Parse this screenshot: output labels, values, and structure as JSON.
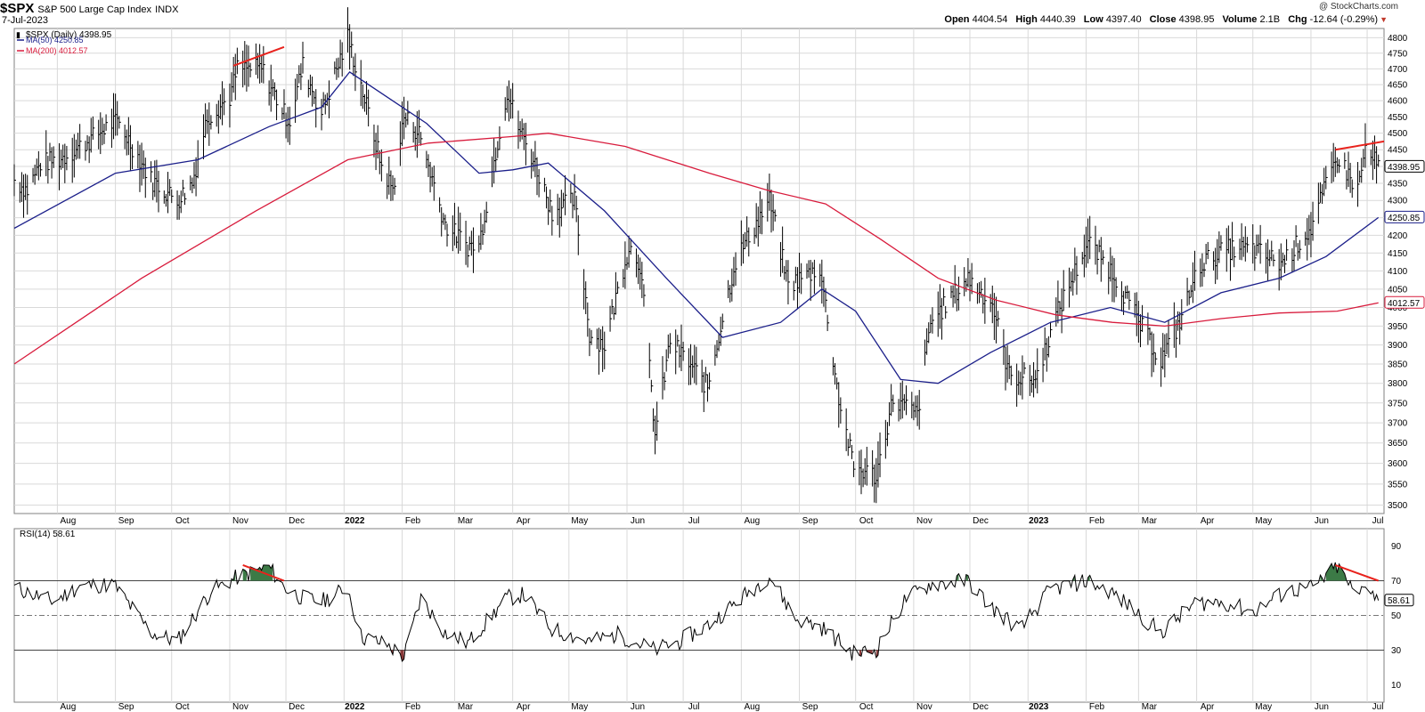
{
  "header": {
    "symbol": "$SPX",
    "name": "S&P 500 Large Cap Index",
    "exchange": "INDX",
    "date": "7-Jul-2023",
    "open_label": "Open",
    "open": "4404.54",
    "high_label": "High",
    "high": "4440.39",
    "low_label": "Low",
    "low": "4397.40",
    "close_label": "Close",
    "close": "4398.95",
    "volume_label": "Volume",
    "volume": "2.1B",
    "chg_label": "Chg",
    "chg": "-12.64 (-0.29%)",
    "watermark": "@ StockCharts.com"
  },
  "legend": {
    "price": "$SPX (Daily) 4398.95",
    "ma50": "MA(50) 4250.85",
    "ma200": "MA(200) 4012.57",
    "rsi": "RSI(14) 58.61"
  },
  "colors": {
    "price": "#000000",
    "ma50": "#1b1f8a",
    "ma200": "#d81b3c",
    "annotation": "#e8221c",
    "grid": "#d9d9d9",
    "overbought_fill": "#3c7a46",
    "oversold_fill": "#8b3a3a"
  },
  "chart_data": [
    {
      "type": "line",
      "title": "$SPX (Daily)",
      "scale": "log",
      "ylim": [
        3480,
        4830
      ],
      "y_ticks": [
        3500,
        3550,
        3600,
        3650,
        3700,
        3750,
        3800,
        3850,
        3900,
        3950,
        4000,
        4050,
        4100,
        4150,
        4200,
        4250,
        4300,
        4350,
        4400,
        4450,
        4500,
        4550,
        4600,
        4650,
        4700,
        4750,
        4800
      ],
      "x_range": [
        "2021-07-09",
        "2023-07-10"
      ],
      "x_tick_labels": [
        {
          "date": "2021-08-01",
          "label": "Aug",
          "bold": false
        },
        {
          "date": "2021-09-01",
          "label": "Sep",
          "bold": false
        },
        {
          "date": "2021-10-01",
          "label": "Oct",
          "bold": false
        },
        {
          "date": "2021-11-01",
          "label": "Nov",
          "bold": false
        },
        {
          "date": "2021-12-01",
          "label": "Dec",
          "bold": false
        },
        {
          "date": "2022-01-01",
          "label": "2022",
          "bold": true
        },
        {
          "date": "2022-02-01",
          "label": "Feb",
          "bold": false
        },
        {
          "date": "2022-03-01",
          "label": "Mar",
          "bold": false
        },
        {
          "date": "2022-04-01",
          "label": "Apr",
          "bold": false
        },
        {
          "date": "2022-05-01",
          "label": "May",
          "bold": false
        },
        {
          "date": "2022-06-01",
          "label": "Jun",
          "bold": false
        },
        {
          "date": "2022-07-01",
          "label": "Jul",
          "bold": false
        },
        {
          "date": "2022-08-01",
          "label": "Aug",
          "bold": false
        },
        {
          "date": "2022-09-01",
          "label": "Sep",
          "bold": false
        },
        {
          "date": "2022-10-01",
          "label": "Oct",
          "bold": false
        },
        {
          "date": "2022-11-01",
          "label": "Nov",
          "bold": false
        },
        {
          "date": "2022-12-01",
          "label": "Dec",
          "bold": false
        },
        {
          "date": "2023-01-01",
          "label": "2023",
          "bold": true
        },
        {
          "date": "2023-02-01",
          "label": "Feb",
          "bold": false
        },
        {
          "date": "2023-03-01",
          "label": "Mar",
          "bold": false
        },
        {
          "date": "2023-04-01",
          "label": "Apr",
          "bold": false
        },
        {
          "date": "2023-05-01",
          "label": "May",
          "bold": false
        },
        {
          "date": "2023-06-01",
          "label": "Jun",
          "bold": false
        },
        {
          "date": "2023-07-01",
          "label": "Jul",
          "bold": false
        }
      ],
      "grid": true,
      "series": [
        {
          "name": "$SPX",
          "style": "ohlc-bars",
          "x": [
            "2021-07-09",
            "2021-07-16",
            "2021-07-23",
            "2021-08-02",
            "2021-08-16",
            "2021-08-30",
            "2021-09-03",
            "2021-09-20",
            "2021-10-04",
            "2021-10-12",
            "2021-10-20",
            "2021-11-01",
            "2021-11-05",
            "2021-11-18",
            "2021-11-30",
            "2021-12-03",
            "2021-12-10",
            "2021-12-20",
            "2022-01-03",
            "2022-01-10",
            "2022-01-21",
            "2022-01-27",
            "2022-02-02",
            "2022-02-10",
            "2022-02-24",
            "2022-03-08",
            "2022-03-14",
            "2022-03-29",
            "2022-04-04",
            "2022-04-12",
            "2022-04-22",
            "2022-05-04",
            "2022-05-12",
            "2022-05-20",
            "2022-06-02",
            "2022-06-08",
            "2022-06-16",
            "2022-06-24",
            "2022-07-06",
            "2022-07-14",
            "2022-07-29",
            "2022-08-16",
            "2022-08-26",
            "2022-09-12",
            "2022-09-22",
            "2022-09-30",
            "2022-10-12",
            "2022-10-21",
            "2022-11-03",
            "2022-11-10",
            "2022-11-30",
            "2022-12-13",
            "2022-12-22",
            "2023-01-05",
            "2023-01-17",
            "2023-02-02",
            "2023-02-16",
            "2023-03-01",
            "2023-03-13",
            "2023-03-22",
            "2023-04-03",
            "2023-04-17",
            "2023-05-01",
            "2023-05-16",
            "2023-06-01",
            "2023-06-15",
            "2023-06-26",
            "2023-06-30",
            "2023-07-07"
          ],
          "values": [
            4360,
            4330,
            4410,
            4420,
            4470,
            4530,
            4530,
            4360,
            4300,
            4350,
            4550,
            4610,
            4700,
            4700,
            4560,
            4540,
            4710,
            4560,
            4800,
            4650,
            4400,
            4330,
            4550,
            4500,
            4230,
            4170,
            4170,
            4630,
            4520,
            4420,
            4270,
            4300,
            3930,
            3900,
            4170,
            4120,
            3670,
            3910,
            3840,
            3790,
            4130,
            4300,
            4060,
            4110,
            3760,
            3590,
            3570,
            3760,
            3720,
            3960,
            4080,
            4010,
            3820,
            3810,
            3990,
            4180,
            4090,
            3960,
            3860,
            3950,
            4120,
            4160,
            4160,
            4120,
            4220,
            4430,
            4330,
            4450,
            4398.95
          ]
        },
        {
          "name": "MA(50)",
          "x": [
            "2021-07-09",
            "2021-09-01",
            "2021-10-15",
            "2021-11-22",
            "2021-12-20",
            "2022-01-04",
            "2022-02-14",
            "2022-03-14",
            "2022-04-01",
            "2022-04-20",
            "2022-05-20",
            "2022-06-22",
            "2022-07-22",
            "2022-08-22",
            "2022-09-13",
            "2022-10-01",
            "2022-10-25",
            "2022-11-14",
            "2022-12-12",
            "2023-01-13",
            "2023-02-14",
            "2023-03-15",
            "2023-04-14",
            "2023-05-15",
            "2023-06-09",
            "2023-07-07"
          ],
          "values": [
            4220,
            4380,
            4420,
            4520,
            4580,
            4690,
            4530,
            4380,
            4390,
            4410,
            4270,
            4080,
            3920,
            3960,
            4050,
            3990,
            3810,
            3800,
            3880,
            3960,
            4000,
            3960,
            4040,
            4080,
            4140,
            4250.85
          ]
        },
        {
          "name": "MA(200)",
          "x": [
            "2021-07-09",
            "2021-09-15",
            "2021-11-15",
            "2022-01-03",
            "2022-02-15",
            "2022-04-01",
            "2022-04-20",
            "2022-05-31",
            "2022-07-15",
            "2022-08-15",
            "2022-09-15",
            "2022-10-14",
            "2022-11-14",
            "2022-12-15",
            "2023-01-16",
            "2023-02-15",
            "2023-03-15",
            "2023-04-14",
            "2023-05-15",
            "2023-06-15",
            "2023-07-07"
          ],
          "values": [
            3850,
            4080,
            4270,
            4420,
            4470,
            4490,
            4500,
            4460,
            4380,
            4330,
            4290,
            4190,
            4080,
            4020,
            3980,
            3960,
            3950,
            3970,
            3985,
            3990,
            4012.57
          ]
        }
      ]
    },
    {
      "type": "line",
      "title": "RSI(14)",
      "ylim": [
        0,
        100
      ],
      "y_ticks": [
        10,
        30,
        50,
        70,
        90
      ],
      "reference_lines": [
        30,
        50,
        70
      ],
      "x_range": [
        "2021-07-09",
        "2023-07-10"
      ],
      "series": [
        {
          "name": "RSI(14)",
          "x": [
            "2021-07-09",
            "2021-07-30",
            "2021-08-13",
            "2021-08-31",
            "2021-09-20",
            "2021-10-04",
            "2021-10-22",
            "2021-11-05",
            "2021-11-22",
            "2021-11-30",
            "2021-12-10",
            "2021-12-20",
            "2022-01-03",
            "2022-01-10",
            "2022-01-24",
            "2022-02-02",
            "2022-02-11",
            "2022-02-24",
            "2022-03-08",
            "2022-03-29",
            "2022-04-07",
            "2022-04-22",
            "2022-05-12",
            "2022-05-27",
            "2022-06-16",
            "2022-06-29",
            "2022-07-15",
            "2022-08-16",
            "2022-08-30",
            "2022-09-13",
            "2022-09-30",
            "2022-10-12",
            "2022-10-28",
            "2022-11-10",
            "2022-11-30",
            "2022-12-12",
            "2022-12-28",
            "2023-01-13",
            "2023-02-02",
            "2023-02-15",
            "2023-03-02",
            "2023-03-13",
            "2023-03-31",
            "2023-04-14",
            "2023-05-01",
            "2023-05-19",
            "2023-06-02",
            "2023-06-15",
            "2023-06-26",
            "2023-06-30",
            "2023-07-07"
          ],
          "values": [
            66,
            58,
            67,
            68,
            40,
            35,
            64,
            72,
            78,
            66,
            60,
            58,
            66,
            38,
            33,
            26,
            60,
            40,
            34,
            60,
            62,
            42,
            35,
            39,
            30,
            35,
            45,
            73,
            48,
            43,
            28,
            30,
            60,
            68,
            70,
            55,
            42,
            65,
            70,
            63,
            50,
            40,
            57,
            58,
            52,
            64,
            66,
            78,
            60,
            70,
            58.61
          ]
        }
      ]
    }
  ],
  "annotations": [
    {
      "pane": "price",
      "from": [
        "2021-11-03",
        4710
      ],
      "to": [
        "2021-11-30",
        4770
      ]
    },
    {
      "pane": "price",
      "from": [
        "2023-06-14",
        4450
      ],
      "to": [
        "2023-07-10",
        4475
      ]
    },
    {
      "pane": "rsi",
      "from": [
        "2021-11-08",
        79
      ],
      "to": [
        "2021-11-30",
        70
      ]
    },
    {
      "pane": "rsi",
      "from": [
        "2023-06-14",
        79
      ],
      "to": [
        "2023-07-07",
        70
      ]
    }
  ]
}
